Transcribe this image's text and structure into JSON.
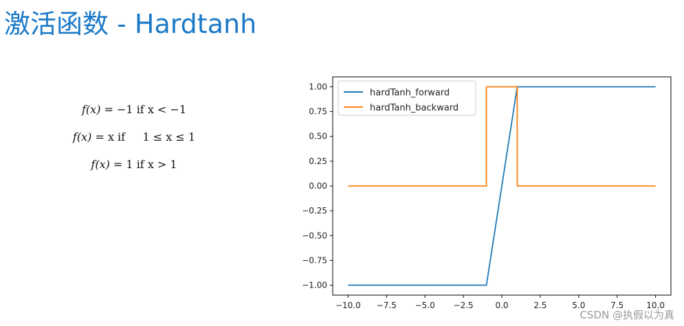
{
  "slide": {
    "title": "激活函数 - Hardtanh"
  },
  "formulas": [
    {
      "lhs": "f(x)",
      "rhs": " = −1 if x < −1"
    },
    {
      "lhs": "f(x)",
      "rhs": " = x if     1 ≤ x ≤ 1"
    },
    {
      "lhs": "f(x)",
      "rhs": " = 1 if x > 1"
    }
  ],
  "watermark": "CSDN @执假以为真",
  "colors": {
    "title": "#1b79c8",
    "forward": "#1f77b4",
    "backward": "#ff7f0e"
  },
  "chart_data": {
    "type": "line",
    "title": "",
    "xlabel": "",
    "ylabel": "",
    "xlim": [
      -11,
      11
    ],
    "ylim": [
      -1.1,
      1.1
    ],
    "xticks": [
      -10.0,
      -7.5,
      -5.0,
      -2.5,
      0.0,
      2.5,
      5.0,
      7.5,
      10.0
    ],
    "xtick_labels": [
      "−10.0",
      "−7.5",
      "−5.0",
      "−2.5",
      "0.0",
      "2.5",
      "5.0",
      "7.5",
      "10.0"
    ],
    "yticks": [
      1.0,
      0.75,
      0.5,
      0.25,
      0.0,
      -0.25,
      -0.5,
      -0.75,
      -1.0
    ],
    "ytick_labels": [
      "1.00",
      "0.75",
      "0.50",
      "0.25",
      "0.00",
      "−0.25",
      "−0.50",
      "−0.75",
      "−1.00"
    ],
    "grid": false,
    "legend_position": "upper-left",
    "series": [
      {
        "name": "hardTanh_forward",
        "color": "#1f77b4",
        "x": [
          -10,
          -1,
          1,
          10
        ],
        "y": [
          -1,
          -1,
          1,
          1
        ]
      },
      {
        "name": "hardTanh_backward",
        "color": "#ff7f0e",
        "x": [
          -10,
          -1,
          -1,
          1,
          1,
          10
        ],
        "y": [
          0,
          0,
          1,
          1,
          0,
          0
        ]
      }
    ]
  }
}
